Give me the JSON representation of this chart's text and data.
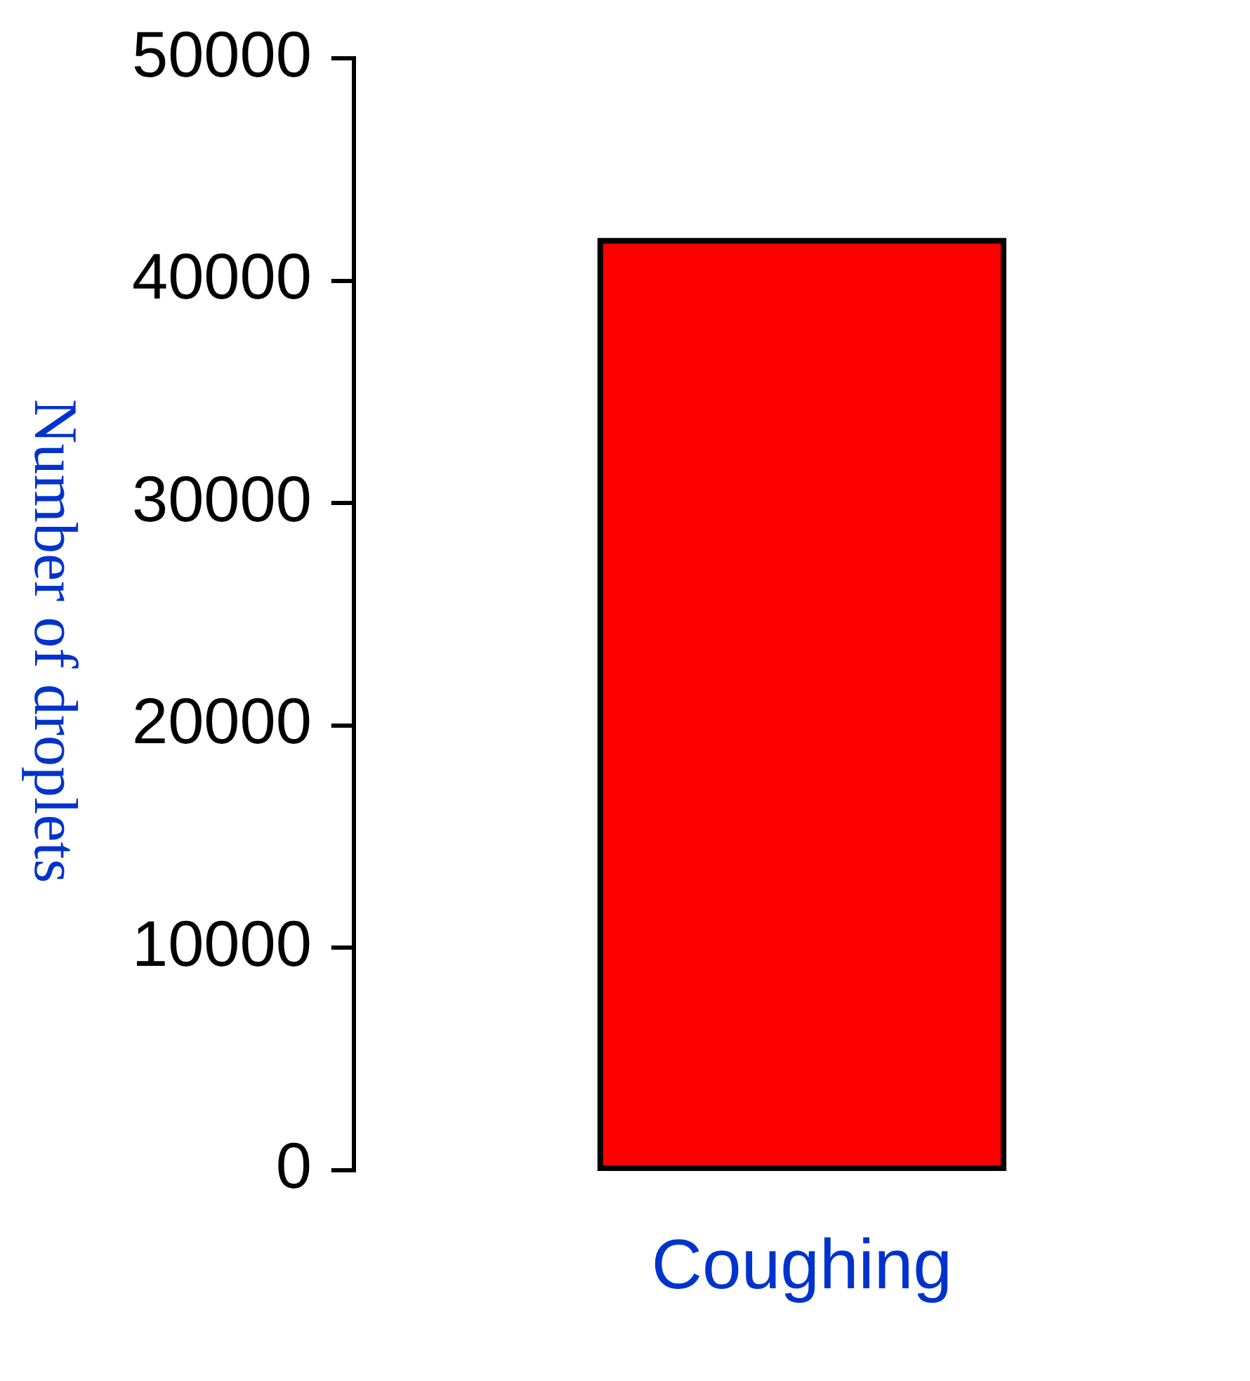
{
  "chart_data": {
    "type": "bar",
    "ylabel": "Number of droplets",
    "categories": [
      "Coughing"
    ],
    "values": [
      41800
    ],
    "color": "#ff0000",
    "ylim": [
      0,
      50000
    ],
    "yticks": [
      0,
      10000,
      20000,
      30000,
      40000,
      50000
    ],
    "grid": false,
    "legend": false
  }
}
